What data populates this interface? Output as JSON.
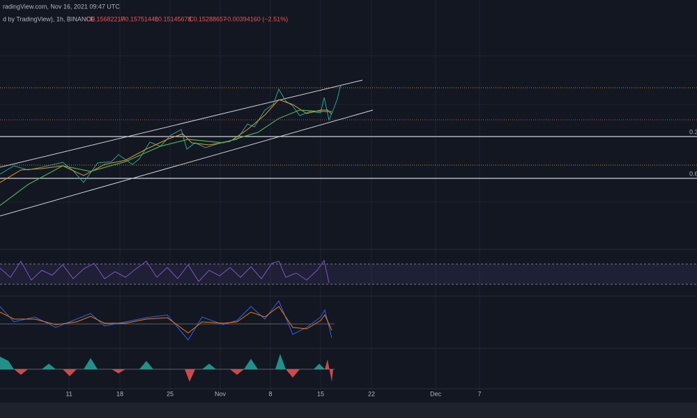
{
  "header": {
    "source": "radingView.com, Nov 16, 2021 09:47 UTC",
    "symbol": "d by TradingView), 1h, BINANCE",
    "open": "O0.15682217",
    "high": "H0.15751448",
    "low": "L0.15145678",
    "close": "C0.15288657",
    "change": "−0.00394160 (−2.51%)"
  },
  "levels": [
    "0.3",
    "0.6"
  ],
  "x_axis": [
    "11",
    "18",
    "25",
    "Nov",
    "8",
    "15",
    "22",
    "Dec",
    "7"
  ]
}
